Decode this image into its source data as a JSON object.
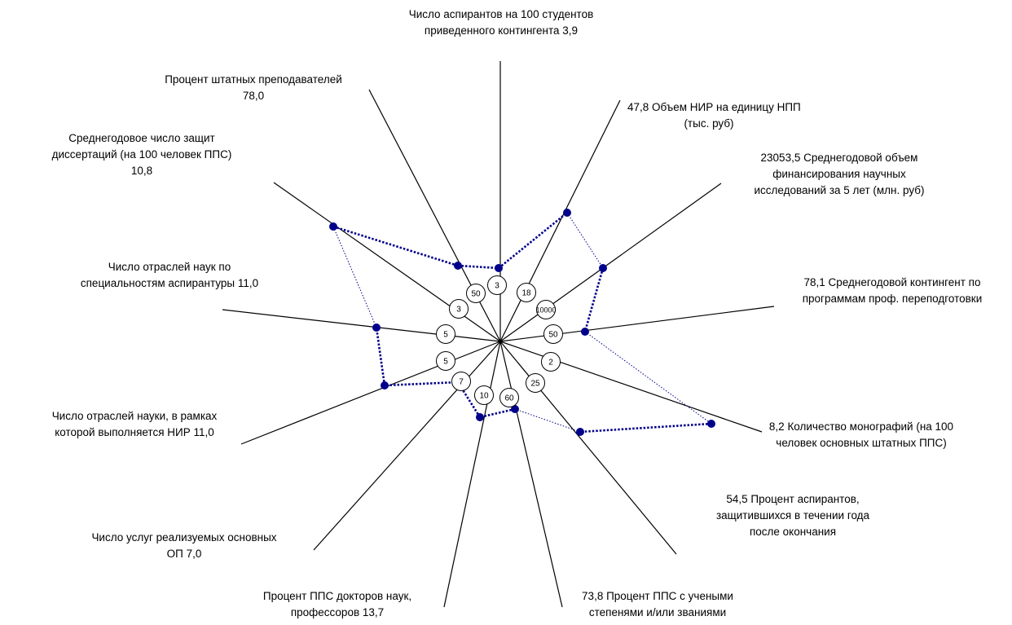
{
  "chart_data": {
    "type": "radar",
    "title": "",
    "threshold_color": "#00008B",
    "axes": [
      {
        "label_lines": [
          "Число аспирантов на 100 студентов",
          "приведенного контингента  3,9"
        ],
        "value": 3.9,
        "threshold": "3"
      },
      {
        "label_lines": [
          "47,8 Объем НИР на единицу НПП",
          "(тыс. руб)"
        ],
        "value": 47.8,
        "threshold": "18"
      },
      {
        "label_lines": [
          "23053,5 Среднегодовой объем",
          "финансирования научных",
          "исследований за 5 лет (млн. руб)"
        ],
        "value": 23053.5,
        "threshold": "10000"
      },
      {
        "label_lines": [
          "78,1 Среднегодовой контингент по",
          "программам проф. переподготовки"
        ],
        "value": 78.1,
        "threshold": "50"
      },
      {
        "label_lines": [
          "8,2 Количество монографий (на 100",
          "человек основных штатных ППС)"
        ],
        "value": 8.2,
        "threshold": "2"
      },
      {
        "label_lines": [
          "54,5 Процент аспирантов,",
          "защитившихся в течении года",
          "после окончания"
        ],
        "value": 54.5,
        "threshold": "25"
      },
      {
        "label_lines": [
          "73,8 Процент ППС с учеными",
          "степенями и/или званиями"
        ],
        "value": 73.8,
        "threshold": "60"
      },
      {
        "label_lines": [
          "Процент ППС докторов наук,",
          "профессоров 13,7"
        ],
        "value": 13.7,
        "threshold": "10"
      },
      {
        "label_lines": [
          "Число услуг реализуемых основных",
          "ОП 7,0"
        ],
        "value": 7.0,
        "threshold": "7"
      },
      {
        "label_lines": [
          "Число отраслей науки, в рамках",
          "которой выполняется НИР 11,0"
        ],
        "value": 11.0,
        "threshold": "5"
      },
      {
        "label_lines": [
          "Число отраслей наук по",
          "специальностям аспирантуры 11,0"
        ],
        "value": 11.0,
        "threshold": "5"
      },
      {
        "label_lines": [
          "Среднегодовое число защит",
          "диссертаций (на 100 человек ППС)",
          "10,8"
        ],
        "value": 10.8,
        "threshold": "3"
      },
      {
        "label_lines": [
          "Процент штатных преподавателей",
          "78,0"
        ],
        "value": 78.0,
        "threshold": "50"
      }
    ]
  }
}
